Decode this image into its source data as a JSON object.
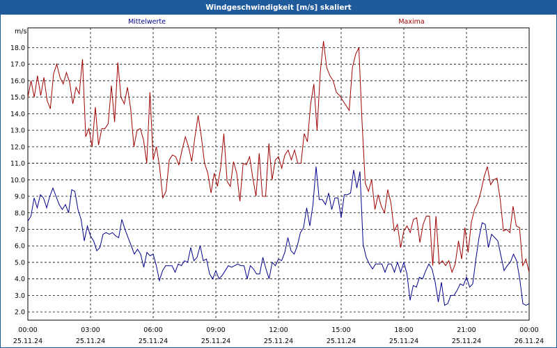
{
  "window": {
    "title": "Windgeschwindigkeit [m/s] skaliert"
  },
  "colors": {
    "title_bg": "#1f5b9a",
    "mean_series": "#00008b",
    "max_series": "#a00000",
    "grid": "#000000",
    "frame": "#1f5b9a"
  },
  "chart_data": {
    "type": "line",
    "title": "Windgeschwindigkeit [m/s] skaliert",
    "ylabel": "m/s",
    "xlabel": "",
    "ylim": [
      1.5,
      19.2
    ],
    "xlim": [
      0,
      24
    ],
    "grid": true,
    "yticks": [
      2.0,
      3.0,
      4.0,
      5.0,
      6.0,
      7.0,
      8.0,
      9.0,
      10.0,
      11.0,
      12.0,
      13.0,
      14.0,
      15.0,
      16.0,
      17.0,
      18.0
    ],
    "xticks": [
      {
        "x": 0,
        "time": "00:00",
        "date": "25.11.24"
      },
      {
        "x": 3,
        "time": "03:00",
        "date": "25.11.24"
      },
      {
        "x": 6,
        "time": "06:00",
        "date": "25.11.24"
      },
      {
        "x": 9,
        "time": "09:00",
        "date": "25.11.24"
      },
      {
        "x": 12,
        "time": "12:00",
        "date": "25.11.24"
      },
      {
        "x": 15,
        "time": "15:00",
        "date": "25.11.24"
      },
      {
        "x": 18,
        "time": "18:00",
        "date": "25.11.24"
      },
      {
        "x": 21,
        "time": "21:00",
        "date": "25.11.24"
      },
      {
        "x": 24,
        "time": "00:00",
        "date": "26.11.24"
      }
    ],
    "series": [
      {
        "name": "Mittelwerte",
        "color": "#00008b",
        "values": [
          7.5,
          7.8,
          8.9,
          8.3,
          9.1,
          8.9,
          8.3,
          9.0,
          9.5,
          9.0,
          8.5,
          8.2,
          8.5,
          8.0,
          9.4,
          9.3,
          8.2,
          7.6,
          6.3,
          7.2,
          6.6,
          6.3,
          5.7,
          5.9,
          6.7,
          6.8,
          6.7,
          6.8,
          6.6,
          6.5,
          7.6,
          7.0,
          6.5,
          6.0,
          5.5,
          5.8,
          5.5,
          4.7,
          5.6,
          5.4,
          5.5,
          4.8,
          3.9,
          4.5,
          4.8,
          4.8,
          4.8,
          4.4,
          4.9,
          4.8,
          5.1,
          5.0,
          5.9,
          5.1,
          5.3,
          6.0,
          5.1,
          5.2,
          4.3,
          4.0,
          4.5,
          4.0,
          4.2,
          4.5,
          4.8,
          4.7,
          4.8,
          4.9,
          4.8,
          4.8,
          4.0,
          4.8,
          4.6,
          4.3,
          4.3,
          5.3,
          4.6,
          4.0,
          5.0,
          4.8,
          5.2,
          5.1,
          5.6,
          6.5,
          5.7,
          5.5,
          6.0,
          6.8,
          7.1,
          8.3,
          7.2,
          8.5,
          10.8,
          8.8,
          8.8,
          8.5,
          9.2,
          8.2,
          8.9,
          8.9,
          7.7,
          9.1,
          9.1,
          9.2,
          10.6,
          9.5,
          10.5,
          6.1,
          5.3,
          4.9,
          4.6,
          4.9,
          4.9,
          4.9,
          4.4,
          4.9,
          4.9,
          4.4,
          5.0,
          4.4,
          5.0,
          4.3,
          2.7,
          3.6,
          3.5,
          4.1,
          4.0,
          4.5,
          4.9,
          4.6,
          3.8,
          2.6,
          3.8,
          2.4,
          2.5,
          3.0,
          3.0,
          3.3,
          3.7,
          3.6,
          4.1,
          3.5,
          3.7,
          5.2,
          6.5,
          7.4,
          7.3,
          5.9,
          6.7,
          6.5,
          6.3,
          5.4,
          4.5,
          4.8,
          5.0,
          5.5,
          5.1,
          4.0,
          2.5,
          2.4,
          2.5
        ]
      },
      {
        "name": "Maxima",
        "color": "#a00000",
        "values": [
          15.0,
          16.0,
          15.0,
          16.3,
          15.1,
          16.2,
          14.8,
          14.3,
          16.4,
          17.0,
          16.2,
          15.8,
          16.5,
          15.9,
          14.6,
          15.6,
          15.2,
          17.3,
          12.6,
          13.1,
          12.0,
          14.4,
          12.1,
          13.1,
          13.1,
          13.4,
          15.7,
          13.5,
          17.1,
          15.0,
          14.6,
          15.6,
          14.3,
          12.0,
          13.0,
          13.1,
          12.4,
          11.0,
          15.3,
          11.2,
          12.0,
          10.8,
          8.9,
          9.3,
          11.2,
          11.5,
          11.4,
          10.9,
          11.8,
          12.6,
          12.0,
          11.1,
          12.6,
          13.9,
          12.6,
          11.0,
          10.4,
          9.2,
          10.4,
          9.6,
          10.7,
          12.8,
          9.9,
          9.6,
          11.1,
          10.4,
          8.7,
          11.0,
          10.9,
          11.4,
          10.1,
          9.0,
          11.6,
          9.0,
          9.0,
          12.2,
          10.0,
          11.2,
          11.4,
          10.7,
          11.5,
          11.8,
          11.2,
          11.8,
          11.0,
          11.0,
          12.8,
          12.3,
          14.6,
          15.8,
          13.0,
          16.5,
          18.4,
          16.8,
          16.3,
          16.0,
          15.3,
          15.1,
          14.8,
          14.5,
          14.2,
          16.8,
          17.6,
          18.0,
          13.5,
          9.8,
          9.3,
          10.0,
          8.2,
          9.1,
          8.4,
          8.0,
          9.4,
          8.6,
          6.9,
          7.3,
          5.9,
          6.9,
          7.2,
          6.8,
          7.6,
          7.7,
          6.2,
          7.3,
          7.8,
          7.8,
          4.8,
          7.8,
          4.9,
          5.1,
          4.8,
          5.1,
          4.4,
          4.9,
          6.3,
          5.2,
          7.1,
          5.6,
          7.4,
          8.2,
          8.6,
          9.3,
          10.2,
          10.8,
          9.7,
          10.0,
          10.1,
          8.8,
          6.9,
          7.0,
          6.8,
          8.4,
          7.2,
          7.1,
          4.8,
          5.2,
          4.4
        ]
      }
    ]
  }
}
